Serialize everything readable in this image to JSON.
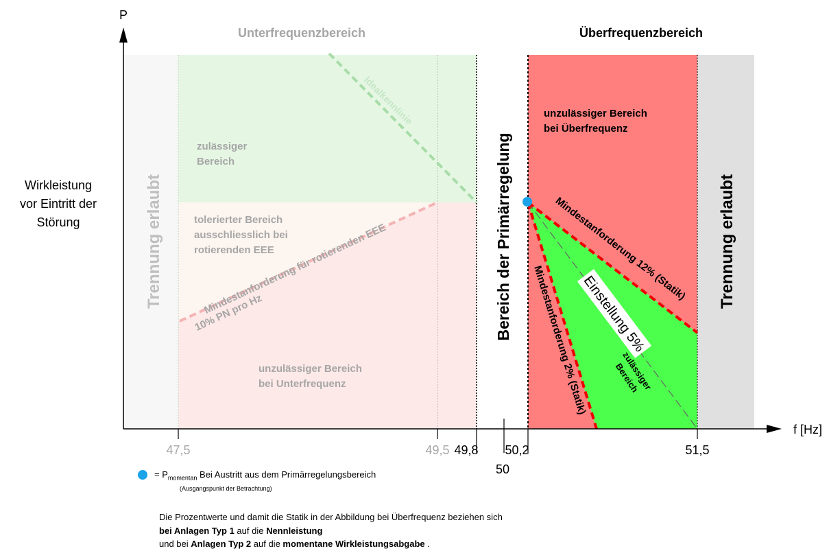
{
  "header": {
    "title_left": "Unterfrequenzbereich",
    "title_right": "Überfrequenzbereich"
  },
  "axes": {
    "y_symbol": "P",
    "x_label": "f [Hz]",
    "y_label": [
      "Wirkleistung",
      "vor Eintritt der",
      "Störung"
    ],
    "ticks": [
      "47,5",
      "49,5",
      "49,8",
      "50",
      "50,2",
      "51,5"
    ]
  },
  "regions": {
    "separation_left": "Trennung erlaubt",
    "separation_right": "Trennung erlaubt",
    "primary": "Bereich der Primärregelung",
    "allowed_under": [
      "zulässiger",
      "Bereich"
    ],
    "tolerated": [
      "tolerierter Bereich",
      "ausschliesslich bei",
      "rotierenden EEE"
    ],
    "forbidden_under": [
      "unzulässiger Bereich",
      "bei Unterfrequenz"
    ],
    "forbidden_over": [
      "unzulässiger Bereich",
      "bei Überfrequenz"
    ],
    "allowed_over": [
      "zulässiger",
      "Bereich"
    ]
  },
  "lines": {
    "ideal": "Idealkennlinie",
    "rotating": [
      "Mindestanforderung für rotierenden EEE",
      "10% PN pro Hz"
    ],
    "min12": "Mindestanforderung 12% (Statik)",
    "min2": "Mindestanforderung 2% (Statik)",
    "setting5": "Einstellung 5%"
  },
  "legend": {
    "prefix": "= P",
    "subscript": "momentan",
    "text": " Bei Austritt aus dem Primärregelungsbereich",
    "note": "(Ausgangspunkt der Betrachtung)"
  },
  "notes": [
    [
      "Die Prozentwerte und damit die Statik in der Abbildung bei Überfrequenz beziehen sich"
    ],
    [
      "bei Anlagen Typ 1",
      " auf die ",
      "Nennleistung"
    ],
    [
      "und bei ",
      "Anlagen Typ 2",
      " auf die ",
      "momentane Wirkleistungsabgabe",
      " ."
    ]
  ]
}
